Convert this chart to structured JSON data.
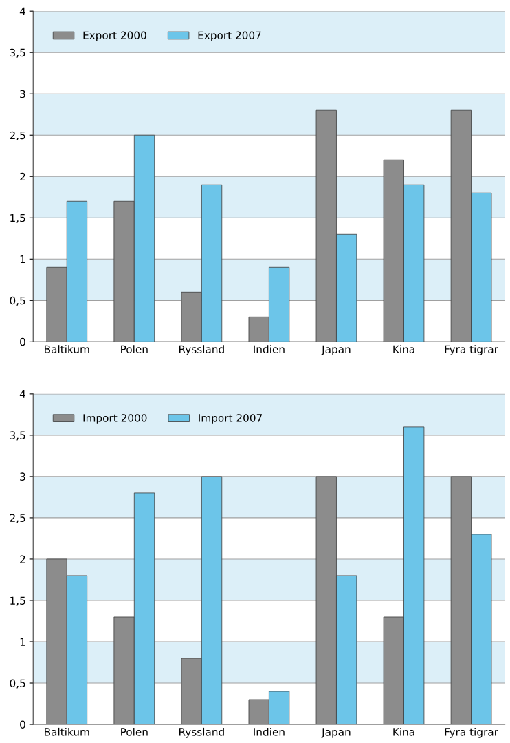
{
  "chart_data": [
    {
      "type": "bar",
      "categories": [
        "Baltikum",
        "Polen",
        "Ryssland",
        "Indien",
        "Japan",
        "Kina",
        "Fyra tigrar"
      ],
      "series": [
        {
          "name": "Export 2000",
          "color": "#8c8c8c",
          "values": [
            0.9,
            1.7,
            0.6,
            0.3,
            2.8,
            2.2,
            2.8
          ]
        },
        {
          "name": "Export 2007",
          "color": "#6cc5e9",
          "values": [
            1.7,
            2.5,
            1.9,
            0.9,
            1.3,
            1.9,
            1.8
          ]
        }
      ],
      "ylim": [
        0,
        4
      ],
      "yticks": [
        0,
        {
          "value": 0.5,
          "label": "0,5"
        },
        1,
        {
          "value": 1.5,
          "label": "1,5"
        },
        2,
        {
          "value": 2.5,
          "label": "2,5"
        },
        3,
        {
          "value": 3.5,
          "label": "3,5"
        },
        4
      ],
      "bands": [
        {
          "axis": "y",
          "from": 0.5,
          "to": 1,
          "color": "#dceff8"
        },
        {
          "axis": "y",
          "from": 1.5,
          "to": 2,
          "color": "#dceff8"
        },
        {
          "axis": "y",
          "from": 2.5,
          "to": 3,
          "color": "#dceff8"
        },
        {
          "axis": "y",
          "from": 3.5,
          "to": 4,
          "color": "#dceff8"
        }
      ],
      "grid": "y",
      "legend": "top left"
    },
    {
      "type": "bar",
      "categories": [
        "Baltikum",
        "Polen",
        "Ryssland",
        "Indien",
        "Japan",
        "Kina",
        "Fyra tigrar"
      ],
      "series": [
        {
          "name": "Import 2000",
          "color": "#8c8c8c",
          "values": [
            2.0,
            1.3,
            0.8,
            0.3,
            3.0,
            1.3,
            3.0
          ]
        },
        {
          "name": "Import 2007",
          "color": "#6cc5e9",
          "values": [
            1.8,
            2.8,
            3.0,
            0.4,
            1.8,
            3.6,
            2.3
          ]
        }
      ],
      "ylim": [
        0,
        4
      ],
      "yticks": [
        0,
        {
          "value": 0.5,
          "label": "0,5"
        },
        1,
        {
          "value": 1.5,
          "label": "1,5"
        },
        2,
        {
          "value": 2.5,
          "label": "2,5"
        },
        3,
        {
          "value": 3.5,
          "label": "3,5"
        },
        4
      ],
      "bands": [
        {
          "axis": "y",
          "from": 0.5,
          "to": 1,
          "color": "#dceff8"
        },
        {
          "axis": "y",
          "from": 1.5,
          "to": 2,
          "color": "#dceff8"
        },
        {
          "axis": "y",
          "from": 2.5,
          "to": 3,
          "color": "#dceff8"
        },
        {
          "axis": "y",
          "from": 3.5,
          "to": 4,
          "color": "#dceff8"
        }
      ],
      "grid": "y",
      "legend": "top left"
    }
  ]
}
